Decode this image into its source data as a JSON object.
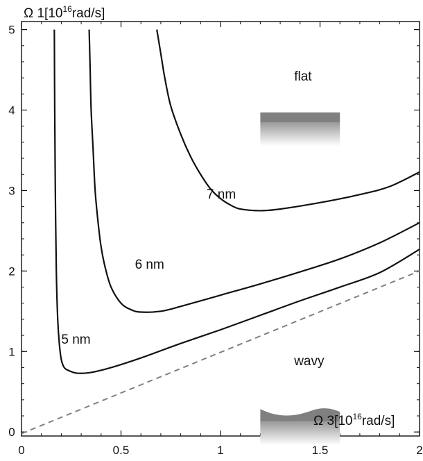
{
  "chart_data": {
    "type": "line",
    "xlabel": {
      "prefix": "Ω 3[10",
      "sup": "16",
      "suffix": "rad/s]"
    },
    "ylabel": {
      "prefix": "Ω 1[10",
      "sup": "16",
      "suffix": "rad/s]"
    },
    "xlim": [
      0,
      2
    ],
    "ylim": [
      -0.05,
      5.1
    ],
    "x_ticks": [
      {
        "value": 0,
        "label": "0"
      },
      {
        "value": 0.5,
        "label": "0.5"
      },
      {
        "value": 1,
        "label": "1"
      },
      {
        "value": 1.5,
        "label": "1.5"
      },
      {
        "value": 2,
        "label": "2"
      }
    ],
    "y_ticks": [
      {
        "value": 0,
        "label": "0"
      },
      {
        "value": 1,
        "label": "1"
      },
      {
        "value": 2,
        "label": "2"
      },
      {
        "value": 3,
        "label": "3"
      },
      {
        "value": 4,
        "label": "4"
      },
      {
        "value": 5,
        "label": "5"
      }
    ],
    "grid": false,
    "series": [
      {
        "name": "5 nm",
        "style": "solid",
        "color": "#111111",
        "points": [
          [
            0.165,
            5.0
          ],
          [
            0.167,
            4.0
          ],
          [
            0.17,
            3.0
          ],
          [
            0.175,
            2.0
          ],
          [
            0.182,
            1.4
          ],
          [
            0.19,
            1.1
          ],
          [
            0.2,
            0.9
          ],
          [
            0.215,
            0.8
          ],
          [
            0.24,
            0.76
          ],
          [
            0.28,
            0.73
          ],
          [
            0.35,
            0.74
          ],
          [
            0.45,
            0.8
          ],
          [
            0.6,
            0.92
          ],
          [
            0.8,
            1.1
          ],
          [
            1.0,
            1.27
          ],
          [
            1.2,
            1.45
          ],
          [
            1.4,
            1.63
          ],
          [
            1.6,
            1.8
          ],
          [
            1.8,
            1.98
          ],
          [
            2.0,
            2.27
          ]
        ],
        "label_at": [
          0.2,
          1.15
        ]
      },
      {
        "name": "6 nm",
        "style": "solid",
        "color": "#111111",
        "points": [
          [
            0.34,
            5.0
          ],
          [
            0.345,
            4.5
          ],
          [
            0.35,
            4.0
          ],
          [
            0.36,
            3.5
          ],
          [
            0.37,
            3.0
          ],
          [
            0.385,
            2.6
          ],
          [
            0.4,
            2.3
          ],
          [
            0.42,
            2.05
          ],
          [
            0.45,
            1.8
          ],
          [
            0.5,
            1.6
          ],
          [
            0.55,
            1.52
          ],
          [
            0.6,
            1.49
          ],
          [
            0.7,
            1.5
          ],
          [
            0.8,
            1.56
          ],
          [
            1.0,
            1.7
          ],
          [
            1.2,
            1.84
          ],
          [
            1.4,
            1.99
          ],
          [
            1.6,
            2.15
          ],
          [
            1.8,
            2.35
          ],
          [
            2.0,
            2.6
          ]
        ],
        "label_at": [
          0.57,
          2.08
        ]
      },
      {
        "name": "7 nm",
        "style": "solid",
        "color": "#111111",
        "points": [
          [
            0.68,
            5.0
          ],
          [
            0.7,
            4.7
          ],
          [
            0.72,
            4.4
          ],
          [
            0.75,
            4.05
          ],
          [
            0.8,
            3.7
          ],
          [
            0.85,
            3.42
          ],
          [
            0.9,
            3.2
          ],
          [
            0.95,
            3.02
          ],
          [
            1.0,
            2.9
          ],
          [
            1.05,
            2.82
          ],
          [
            1.1,
            2.77
          ],
          [
            1.2,
            2.75
          ],
          [
            1.3,
            2.77
          ],
          [
            1.5,
            2.85
          ],
          [
            1.7,
            2.95
          ],
          [
            1.85,
            3.05
          ],
          [
            2.0,
            3.23
          ]
        ],
        "label_at": [
          0.93,
          2.95
        ]
      },
      {
        "name": "",
        "style": "dashed",
        "color": "#808080",
        "points": [
          [
            0.0,
            -0.02
          ],
          [
            2.0,
            2.0
          ]
        ]
      }
    ],
    "insets": [
      {
        "label": "flat",
        "kind": "flat",
        "x": 1.2,
        "y": 3.72,
        "label_at": [
          1.37,
          4.42
        ]
      },
      {
        "label": "wavy",
        "kind": "wavy",
        "x": 1.2,
        "y": 0.0,
        "label_at": [
          1.37,
          0.88
        ]
      }
    ],
    "colors": {
      "curve": "#111111",
      "dashed": "#808080",
      "surface": "#808080"
    }
  }
}
